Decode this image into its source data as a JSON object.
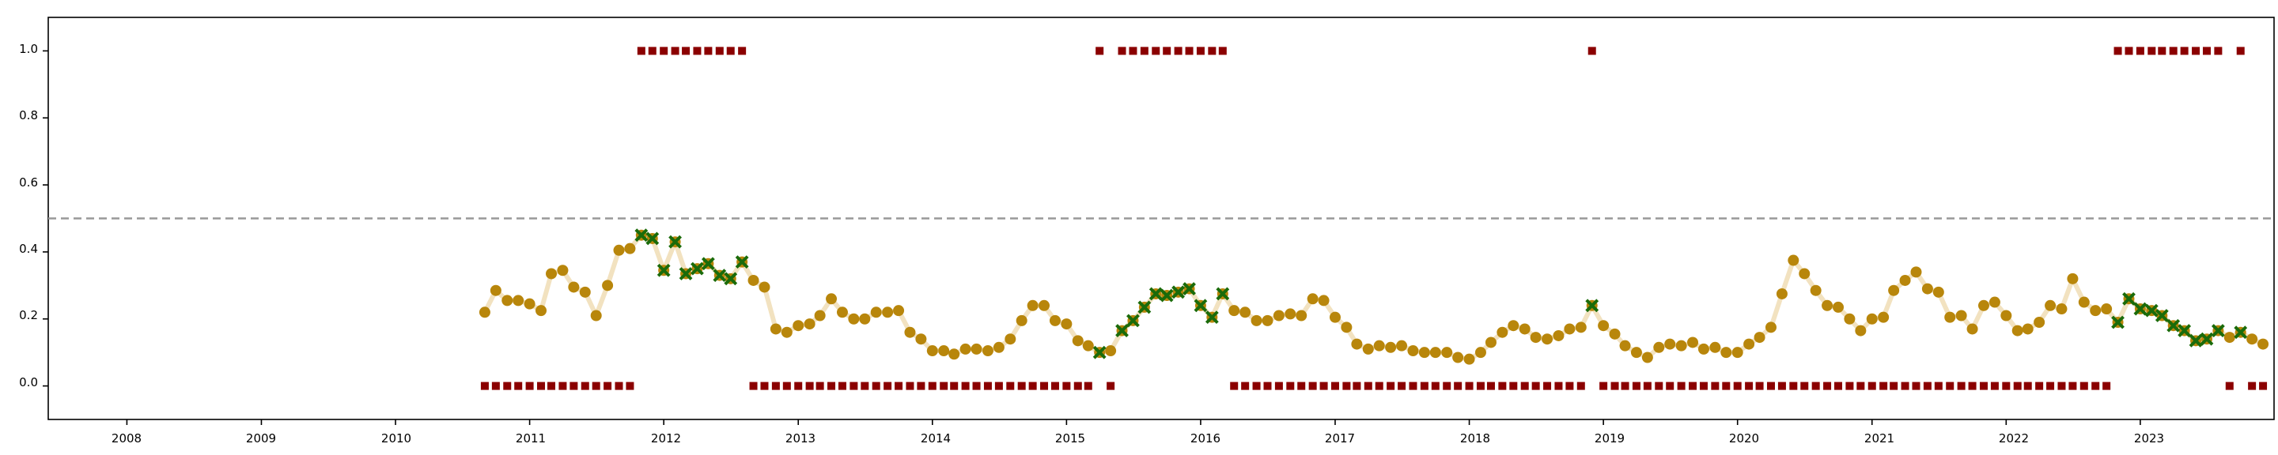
{
  "chart_data": {
    "type": "scatter",
    "title": "",
    "xlabel": "",
    "ylabel": "",
    "xlim": [
      "2007-06-01",
      "2023-12-31"
    ],
    "ylim": [
      -0.1,
      1.1
    ],
    "x_ticks": [
      "2008",
      "2009",
      "2010",
      "2011",
      "2012",
      "2013",
      "2014",
      "2015",
      "2016",
      "2017",
      "2018",
      "2019",
      "2020",
      "2021",
      "2022",
      "2023"
    ],
    "y_ticks": [
      "0.0",
      "0.2",
      "0.4",
      "0.6",
      "0.8",
      "1.0"
    ],
    "threshold_line": 0.5,
    "grid": false,
    "colors": {
      "score_point": "#b8860b",
      "score_line": "#f2e2c0",
      "flagged_marker": "#1a6b0a",
      "binary_marker": "#8b0000",
      "threshold": "#999999"
    },
    "series": [
      {
        "marker": "circle",
        "x": [
          "2010-09-01",
          "2010-10-01",
          "2010-11-01",
          "2010-12-01",
          "2011-01-01",
          "2011-02-01",
          "2011-03-01",
          "2011-04-01",
          "2011-05-01",
          "2011-06-01",
          "2011-07-01",
          "2011-08-01",
          "2011-09-01",
          "2011-10-01",
          "2011-11-01",
          "2011-12-01",
          "2012-01-01",
          "2012-02-01",
          "2012-03-01",
          "2012-04-01",
          "2012-05-01",
          "2012-06-01",
          "2012-07-01",
          "2012-08-01",
          "2012-09-01",
          "2012-10-01",
          "2012-11-01",
          "2012-12-01",
          "2013-01-01",
          "2013-02-01",
          "2013-03-01",
          "2013-04-01",
          "2013-05-01",
          "2013-06-01",
          "2013-07-01",
          "2013-08-01",
          "2013-09-01",
          "2013-10-01",
          "2013-11-01",
          "2013-12-01",
          "2014-01-01",
          "2014-02-01",
          "2014-03-01",
          "2014-04-01",
          "2014-05-01",
          "2014-06-01",
          "2014-07-01",
          "2014-08-01",
          "2014-09-01",
          "2014-10-01",
          "2014-11-01",
          "2014-12-01",
          "2015-01-01",
          "2015-02-01",
          "2015-03-01",
          "2015-04-01",
          "2015-05-01",
          "2015-06-01",
          "2015-07-01",
          "2015-08-01",
          "2015-09-01",
          "2015-10-01",
          "2015-11-01",
          "2015-12-01",
          "2016-01-01",
          "2016-02-01",
          "2016-03-01",
          "2016-04-01",
          "2016-05-01",
          "2016-06-01",
          "2016-07-01",
          "2016-08-01",
          "2016-09-01",
          "2016-10-01",
          "2016-11-01",
          "2016-12-01",
          "2017-01-01",
          "2017-02-01",
          "2017-03-01",
          "2017-04-01",
          "2017-05-01",
          "2017-06-01",
          "2017-07-01",
          "2017-08-01",
          "2017-09-01",
          "2017-10-01",
          "2017-11-01",
          "2017-12-01",
          "2018-01-01",
          "2018-02-01",
          "2018-03-01",
          "2018-04-01",
          "2018-05-01",
          "2018-06-01",
          "2018-07-01",
          "2018-08-01",
          "2018-09-01",
          "2018-10-01",
          "2018-11-01",
          "2018-12-01",
          "2019-01-01",
          "2019-02-01",
          "2019-03-01",
          "2019-04-01",
          "2019-05-01",
          "2019-06-01",
          "2019-07-01",
          "2019-08-01",
          "2019-09-01",
          "2019-10-01",
          "2019-11-01",
          "2019-12-01",
          "2020-01-01",
          "2020-02-01",
          "2020-03-01",
          "2020-04-01",
          "2020-05-01",
          "2020-06-01",
          "2020-07-01",
          "2020-08-01",
          "2020-09-01",
          "2020-10-01",
          "2020-11-01",
          "2020-12-01",
          "2021-01-01",
          "2021-02-01",
          "2021-03-01",
          "2021-04-01",
          "2021-05-01",
          "2021-06-01",
          "2021-07-01",
          "2021-08-01",
          "2021-09-01",
          "2021-10-01",
          "2021-11-01",
          "2021-12-01",
          "2022-01-01",
          "2022-02-01",
          "2022-03-01",
          "2022-04-01",
          "2022-05-01",
          "2022-06-01",
          "2022-07-01",
          "2022-08-01",
          "2022-09-01",
          "2022-10-01",
          "2022-11-01",
          "2022-12-01",
          "2023-01-01",
          "2023-02-01",
          "2023-03-01",
          "2023-04-01",
          "2023-05-01",
          "2023-06-01",
          "2023-07-01",
          "2023-08-01",
          "2023-09-01",
          "2023-10-01",
          "2023-11-01",
          "2023-12-01"
        ],
        "y": [
          0.22,
          0.285,
          0.255,
          0.255,
          0.245,
          0.225,
          0.335,
          0.345,
          0.295,
          0.28,
          0.21,
          0.3,
          0.405,
          0.41,
          0.45,
          0.44,
          0.345,
          0.43,
          0.335,
          0.35,
          0.365,
          0.33,
          0.32,
          0.37,
          0.315,
          0.295,
          0.17,
          0.16,
          0.18,
          0.185,
          0.21,
          0.26,
          0.22,
          0.2,
          0.2,
          0.22,
          0.22,
          0.225,
          0.16,
          0.14,
          0.105,
          0.105,
          0.095,
          0.11,
          0.11,
          0.105,
          0.115,
          0.14,
          0.195,
          0.24,
          0.24,
          0.195,
          0.185,
          0.135,
          0.12,
          0.1,
          0.105,
          0.165,
          0.195,
          0.235,
          0.275,
          0.27,
          0.28,
          0.29,
          0.24,
          0.205,
          0.275,
          0.225,
          0.22,
          0.195,
          0.195,
          0.21,
          0.215,
          0.21,
          0.26,
          0.255,
          0.205,
          0.175,
          0.125,
          0.11,
          0.12,
          0.115,
          0.12,
          0.105,
          0.1,
          0.1,
          0.1,
          0.085,
          0.08,
          0.1,
          0.13,
          0.16,
          0.18,
          0.17,
          0.145,
          0.14,
          0.15,
          0.17,
          0.175,
          0.24,
          0.18,
          0.155,
          0.12,
          0.1,
          0.085,
          0.115,
          0.125,
          0.12,
          0.13,
          0.11,
          0.115,
          0.1,
          0.1,
          0.125,
          0.145,
          0.175,
          0.275,
          0.375,
          0.335,
          0.285,
          0.24,
          0.235,
          0.2,
          0.165,
          0.2,
          0.205,
          0.285,
          0.315,
          0.34,
          0.29,
          0.28,
          0.205,
          0.21,
          0.17,
          0.24,
          0.25,
          0.21,
          0.165,
          0.17,
          0.19,
          0.24,
          0.23,
          0.32,
          0.25,
          0.225,
          0.23,
          0.19,
          0.26,
          0.23,
          0.225,
          0.21,
          0.18,
          0.165,
          0.135,
          0.14,
          0.165,
          0.145,
          0.16,
          0.14,
          0.125
        ]
      },
      {
        "marker": "x",
        "x": [
          "2011-11-01",
          "2011-12-01",
          "2012-01-01",
          "2012-02-01",
          "2012-03-01",
          "2012-04-01",
          "2012-05-01",
          "2012-06-01",
          "2012-07-01",
          "2012-08-01",
          "2015-04-01",
          "2015-06-01",
          "2015-07-01",
          "2015-08-01",
          "2015-09-01",
          "2015-10-01",
          "2015-11-01",
          "2015-12-01",
          "2016-01-01",
          "2016-02-01",
          "2016-03-01",
          "2018-12-01",
          "2022-11-01",
          "2022-12-01",
          "2023-01-01",
          "2023-02-01",
          "2023-03-01",
          "2023-04-01",
          "2023-05-01",
          "2023-06-01",
          "2023-07-01",
          "2023-08-01",
          "2023-10-01"
        ],
        "y": [
          0.45,
          0.44,
          0.345,
          0.43,
          0.335,
          0.35,
          0.365,
          0.33,
          0.32,
          0.37,
          0.1,
          0.165,
          0.195,
          0.235,
          0.275,
          0.27,
          0.28,
          0.29,
          0.24,
          0.205,
          0.275,
          0.24,
          0.19,
          0.26,
          0.23,
          0.225,
          0.21,
          0.18,
          0.165,
          0.135,
          0.14,
          0.165,
          0.16
        ]
      },
      {
        "marker": "square",
        "x": [
          "2010-09-01",
          "2010-10-01",
          "2010-11-01",
          "2010-12-01",
          "2011-01-01",
          "2011-02-01",
          "2011-03-01",
          "2011-04-01",
          "2011-05-01",
          "2011-06-01",
          "2011-07-01",
          "2011-08-01",
          "2011-09-01",
          "2011-10-01",
          "2011-11-01",
          "2011-12-01",
          "2012-01-01",
          "2012-02-01",
          "2012-03-01",
          "2012-04-01",
          "2012-05-01",
          "2012-06-01",
          "2012-07-01",
          "2012-08-01",
          "2012-09-01",
          "2012-10-01",
          "2012-11-01",
          "2012-12-01",
          "2013-01-01",
          "2013-02-01",
          "2013-03-01",
          "2013-04-01",
          "2013-05-01",
          "2013-06-01",
          "2013-07-01",
          "2013-08-01",
          "2013-09-01",
          "2013-10-01",
          "2013-11-01",
          "2013-12-01",
          "2014-01-01",
          "2014-02-01",
          "2014-03-01",
          "2014-04-01",
          "2014-05-01",
          "2014-06-01",
          "2014-07-01",
          "2014-08-01",
          "2014-09-01",
          "2014-10-01",
          "2014-11-01",
          "2014-12-01",
          "2015-01-01",
          "2015-02-01",
          "2015-03-01",
          "2015-04-01",
          "2015-05-01",
          "2015-06-01",
          "2015-07-01",
          "2015-08-01",
          "2015-09-01",
          "2015-10-01",
          "2015-11-01",
          "2015-12-01",
          "2016-01-01",
          "2016-02-01",
          "2016-03-01",
          "2016-04-01",
          "2016-05-01",
          "2016-06-01",
          "2016-07-01",
          "2016-08-01",
          "2016-09-01",
          "2016-10-01",
          "2016-11-01",
          "2016-12-01",
          "2017-01-01",
          "2017-02-01",
          "2017-03-01",
          "2017-04-01",
          "2017-05-01",
          "2017-06-01",
          "2017-07-01",
          "2017-08-01",
          "2017-09-01",
          "2017-10-01",
          "2017-11-01",
          "2017-12-01",
          "2018-01-01",
          "2018-02-01",
          "2018-03-01",
          "2018-04-01",
          "2018-05-01",
          "2018-06-01",
          "2018-07-01",
          "2018-08-01",
          "2018-09-01",
          "2018-10-01",
          "2018-11-01",
          "2018-12-01",
          "2019-01-01",
          "2019-02-01",
          "2019-03-01",
          "2019-04-01",
          "2019-05-01",
          "2019-06-01",
          "2019-07-01",
          "2019-08-01",
          "2019-09-01",
          "2019-10-01",
          "2019-11-01",
          "2019-12-01",
          "2020-01-01",
          "2020-02-01",
          "2020-03-01",
          "2020-04-01",
          "2020-05-01",
          "2020-06-01",
          "2020-07-01",
          "2020-08-01",
          "2020-09-01",
          "2020-10-01",
          "2020-11-01",
          "2020-12-01",
          "2021-01-01",
          "2021-02-01",
          "2021-03-01",
          "2021-04-01",
          "2021-05-01",
          "2021-06-01",
          "2021-07-01",
          "2021-08-01",
          "2021-09-01",
          "2021-10-01",
          "2021-11-01",
          "2021-12-01",
          "2022-01-01",
          "2022-02-01",
          "2022-03-01",
          "2022-04-01",
          "2022-05-01",
          "2022-06-01",
          "2022-07-01",
          "2022-08-01",
          "2022-09-01",
          "2022-10-01",
          "2022-11-01",
          "2022-12-01",
          "2023-01-01",
          "2023-02-01",
          "2023-03-01",
          "2023-04-01",
          "2023-05-01",
          "2023-06-01",
          "2023-07-01",
          "2023-08-01",
          "2023-09-01",
          "2023-10-01",
          "2023-11-01",
          "2023-12-01"
        ],
        "y": [
          0,
          0,
          0,
          0,
          0,
          0,
          0,
          0,
          0,
          0,
          0,
          0,
          0,
          0,
          1,
          1,
          1,
          1,
          1,
          1,
          1,
          1,
          1,
          1,
          0,
          0,
          0,
          0,
          0,
          0,
          0,
          0,
          0,
          0,
          0,
          0,
          0,
          0,
          0,
          0,
          0,
          0,
          0,
          0,
          0,
          0,
          0,
          0,
          0,
          0,
          0,
          0,
          0,
          0,
          0,
          1,
          0,
          1,
          1,
          1,
          1,
          1,
          1,
          1,
          1,
          1,
          1,
          0,
          0,
          0,
          0,
          0,
          0,
          0,
          0,
          0,
          0,
          0,
          0,
          0,
          0,
          0,
          0,
          0,
          0,
          0,
          0,
          0,
          0,
          0,
          0,
          0,
          0,
          0,
          0,
          0,
          0,
          0,
          0,
          1,
          0,
          0,
          0,
          0,
          0,
          0,
          0,
          0,
          0,
          0,
          0,
          0,
          0,
          0,
          0,
          0,
          0,
          0,
          0,
          0,
          0,
          0,
          0,
          0,
          0,
          0,
          0,
          0,
          0,
          0,
          0,
          0,
          0,
          0,
          0,
          0,
          0,
          0,
          0,
          0,
          0,
          0,
          0,
          0,
          0,
          0,
          1,
          1,
          1,
          1,
          1,
          1,
          1,
          1,
          1,
          1,
          0,
          1,
          0,
          0
        ]
      }
    ]
  }
}
